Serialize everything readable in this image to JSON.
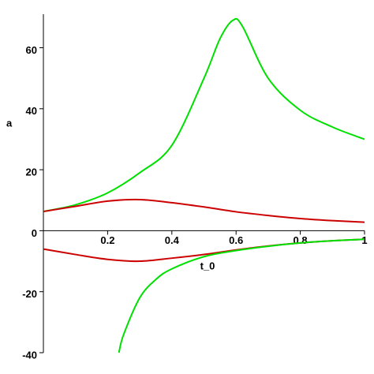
{
  "chart_data": {
    "type": "line",
    "xlabel": "t_0",
    "ylabel": "a",
    "xlim": [
      0,
      1
    ],
    "ylim": [
      -40,
      71
    ],
    "xticks": [
      0.2,
      0.4,
      0.6,
      0.8,
      1
    ],
    "yticks": [
      -40,
      -20,
      0,
      20,
      40,
      60
    ],
    "series": [
      {
        "color": "#00e000",
        "x": [
          0,
          0.1,
          0.2,
          0.3,
          0.4,
          0.5,
          0.55,
          0.59,
          0.62,
          0.7,
          0.8,
          0.9,
          1
        ],
        "values": [
          6.3,
          8.5,
          12.4,
          19,
          28,
          50,
          63,
          69,
          67,
          50,
          39.5,
          34,
          30
        ]
      },
      {
        "color": "#cc0000",
        "x": [
          0,
          0.1,
          0.2,
          0.3,
          0.4,
          0.5,
          0.6,
          0.7,
          0.8,
          0.9,
          1
        ],
        "values": [
          6.3,
          8,
          9.7,
          10.2,
          9.2,
          7.8,
          6.2,
          5,
          4,
          3.3,
          2.8
        ]
      },
      {
        "color": "#cc0000",
        "x": [
          0,
          0.1,
          0.2,
          0.3,
          0.4,
          0.5,
          0.6,
          0.7,
          0.8,
          0.9,
          1
        ],
        "values": [
          -6,
          -7.8,
          -9.4,
          -10,
          -9,
          -7.8,
          -6.3,
          -5,
          -4,
          -3.3,
          -2.8
        ]
      },
      {
        "color": "#00e000",
        "x": [
          0.235,
          0.25,
          0.3,
          0.35,
          0.4,
          0.5,
          0.6,
          0.7,
          0.8,
          0.9,
          1
        ],
        "values": [
          -40,
          -34,
          -22,
          -16,
          -12.5,
          -8.5,
          -6.5,
          -5.1,
          -4,
          -3.3,
          -2.8
        ]
      }
    ]
  }
}
